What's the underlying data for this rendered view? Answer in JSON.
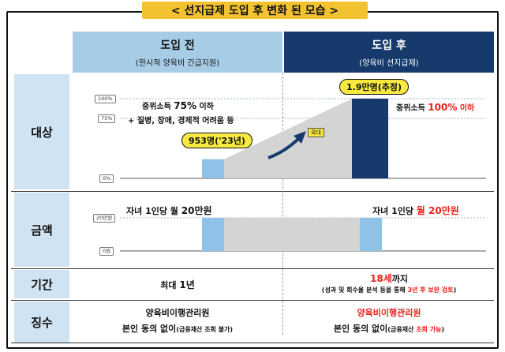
{
  "title": "< 선지급제 도입 후 변화 된 모습 >",
  "columns": {
    "before": {
      "title": "도입 전",
      "subtitle": "(한시적 양육비 긴급지원)"
    },
    "after": {
      "title": "도입 후",
      "subtitle": "(양육비 선지급제)"
    }
  },
  "rows": {
    "target": "대상",
    "amount": "금액",
    "period": "기간",
    "collection": "징수"
  },
  "target_chart": {
    "ticks": [
      "100%",
      "75%",
      "0%"
    ],
    "before_line1": "중위소득 ",
    "before_line1_num": "75%",
    "before_line1_suffix": " 이하",
    "before_line2": "+ 질병, 장애, 경제적 어려움 등",
    "before_count": "953명('23년)",
    "expand_label": "확대",
    "after_count": "1.9만명(추정)",
    "after_line_prefix": "중위소득 ",
    "after_line_highlight": "100%",
    "after_line_suffix": " 이하",
    "before_level_pct": 24,
    "after_level_pct": 100
  },
  "amount_chart": {
    "ticks": [
      "20만원",
      "0원"
    ],
    "before_text_prefix": "자녀 1인당 월 ",
    "before_text_value": "20만원",
    "after_text_prefix": "자녀 1인당 ",
    "after_text_value": "월 20만원"
  },
  "period": {
    "before_prefix": "최대 ",
    "before_value": "1년",
    "after_value": "18세",
    "after_suffix": "까지",
    "after_note_prefix": "(성과 및 회수율 분석 등을 통해 ",
    "after_note_highlight": "3년 후 보완 검토",
    "after_note_suffix": ")"
  },
  "collection": {
    "before_agency": "양육비이행관리원",
    "before_line_prefix": "본인 동의 없이",
    "before_line_note": "(금융재산 조회 불가)",
    "after_agency": "양육비이행관리원",
    "after_line_prefix": "본인 동의 없이",
    "after_line_note_prefix": "(금융재산 ",
    "after_line_note_highlight": "조회 가능",
    "after_line_note_suffix": ")"
  },
  "colors": {
    "accent_yellow": "#f2c230",
    "header_light": "#a7cde6",
    "header_dark": "#163a6b",
    "bar_light": "#8fc2e6",
    "bar_dark": "#163a6b",
    "highlight_red": "#e8231a"
  }
}
